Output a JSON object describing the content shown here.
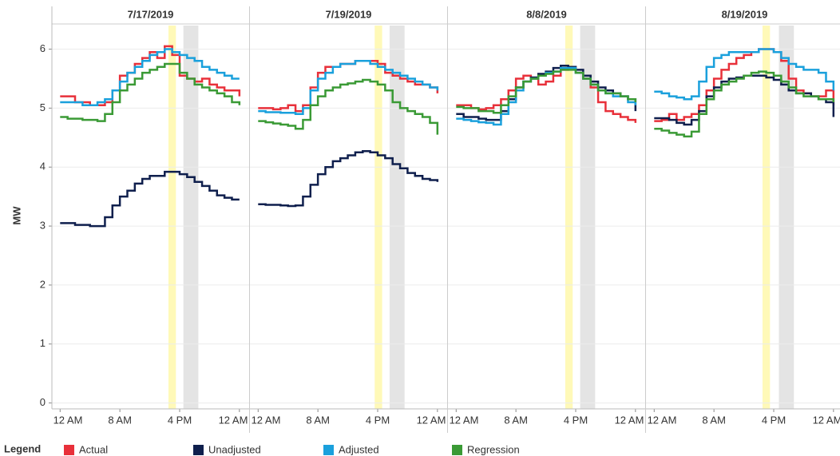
{
  "ylabel": "MW",
  "legend_title": "Legend",
  "chart_data": [
    {
      "type": "line",
      "step": true,
      "title": "7/17/2019",
      "x": [
        0,
        1,
        2,
        3,
        4,
        5,
        6,
        7,
        8,
        9,
        10,
        11,
        12,
        13,
        14,
        15,
        16,
        17,
        18,
        19,
        20,
        21,
        22,
        23,
        24
      ],
      "xlim": [
        -1.1,
        25.3
      ],
      "xticks": [
        {
          "value": 0,
          "label": "12 AM"
        },
        {
          "value": 8,
          "label": "8 AM"
        },
        {
          "value": 16,
          "label": "4 PM"
        },
        {
          "value": 24,
          "label": "12 AM"
        }
      ],
      "ylim": [
        -0.1,
        6.4
      ],
      "yticks": [
        0,
        1,
        2,
        3,
        4,
        5,
        6
      ],
      "grid": true,
      "highlights": [
        {
          "x": [
            14.5,
            15.5
          ],
          "color": "#fff9b8"
        },
        {
          "x": [
            16.5,
            18.5
          ],
          "color": "#e4e4e4"
        }
      ],
      "series": [
        {
          "name": "Actual",
          "color": "#e8303a",
          "values": [
            5.2,
            5.2,
            5.1,
            5.1,
            5.05,
            5.05,
            5.1,
            5.3,
            5.55,
            5.6,
            5.75,
            5.85,
            5.95,
            5.85,
            6.05,
            5.9,
            5.55,
            5.5,
            5.45,
            5.5,
            5.4,
            5.35,
            5.3,
            5.3,
            5.2
          ]
        },
        {
          "name": "Unadjusted",
          "color": "#0f1f4d",
          "values": [
            3.05,
            3.05,
            3.02,
            3.02,
            3.0,
            3.0,
            3.15,
            3.35,
            3.5,
            3.6,
            3.72,
            3.8,
            3.85,
            3.85,
            3.92,
            3.92,
            3.88,
            3.83,
            3.75,
            3.68,
            3.6,
            3.52,
            3.48,
            3.45,
            3.45
          ]
        },
        {
          "name": "Adjusted",
          "color": "#1aa0dc",
          "values": [
            5.1,
            5.1,
            5.1,
            5.05,
            5.05,
            5.1,
            5.15,
            5.3,
            5.45,
            5.6,
            5.7,
            5.8,
            5.9,
            5.95,
            6.0,
            5.95,
            5.9,
            5.85,
            5.8,
            5.7,
            5.65,
            5.6,
            5.55,
            5.5,
            5.5
          ]
        },
        {
          "name": "Regression",
          "color": "#3a9a35",
          "values": [
            4.85,
            4.82,
            4.82,
            4.8,
            4.8,
            4.78,
            4.9,
            5.1,
            5.3,
            5.4,
            5.5,
            5.6,
            5.65,
            5.7,
            5.75,
            5.75,
            5.6,
            5.5,
            5.4,
            5.35,
            5.3,
            5.25,
            5.2,
            5.1,
            5.05
          ]
        }
      ]
    },
    {
      "type": "line",
      "step": true,
      "title": "7/19/2019",
      "x": [
        0,
        1,
        2,
        3,
        4,
        5,
        6,
        7,
        8,
        9,
        10,
        11,
        12,
        13,
        14,
        15,
        16,
        17,
        18,
        19,
        20,
        21,
        22,
        23,
        24
      ],
      "xlim": [
        -1.1,
        25.3
      ],
      "xticks": [
        {
          "value": 0,
          "label": "12 AM"
        },
        {
          "value": 8,
          "label": "8 AM"
        },
        {
          "value": 16,
          "label": "4 PM"
        },
        {
          "value": 24,
          "label": "12 AM"
        }
      ],
      "ylim": [
        -0.1,
        6.4
      ],
      "yticks": [
        0,
        1,
        2,
        3,
        4,
        5,
        6
      ],
      "grid": true,
      "highlights": [
        {
          "x": [
            15.6,
            16.6
          ],
          "color": "#fff9b8"
        },
        {
          "x": [
            17.6,
            19.6
          ],
          "color": "#e4e4e4"
        }
      ],
      "series": [
        {
          "name": "Actual",
          "color": "#e8303a",
          "values": [
            5.0,
            5.0,
            4.98,
            5.0,
            5.05,
            4.95,
            5.05,
            5.35,
            5.6,
            5.7,
            5.7,
            5.75,
            5.75,
            5.8,
            5.8,
            5.8,
            5.75,
            5.6,
            5.55,
            5.5,
            5.45,
            5.4,
            5.4,
            5.35,
            5.25
          ]
        },
        {
          "name": "Unadjusted",
          "color": "#0f1f4d",
          "values": [
            3.37,
            3.36,
            3.36,
            3.35,
            3.34,
            3.35,
            3.5,
            3.7,
            3.88,
            4.0,
            4.1,
            4.15,
            4.2,
            4.25,
            4.27,
            4.25,
            4.2,
            4.15,
            4.05,
            3.98,
            3.9,
            3.85,
            3.8,
            3.78,
            3.75
          ]
        },
        {
          "name": "Adjusted",
          "color": "#1aa0dc",
          "values": [
            4.95,
            4.93,
            4.93,
            4.92,
            4.92,
            4.9,
            5.0,
            5.3,
            5.5,
            5.6,
            5.7,
            5.75,
            5.75,
            5.8,
            5.8,
            5.75,
            5.7,
            5.65,
            5.6,
            5.55,
            5.5,
            5.45,
            5.4,
            5.35,
            5.3
          ]
        },
        {
          "name": "Regression",
          "color": "#3a9a35",
          "values": [
            4.78,
            4.76,
            4.74,
            4.72,
            4.7,
            4.65,
            4.8,
            5.05,
            5.2,
            5.3,
            5.35,
            5.4,
            5.42,
            5.45,
            5.48,
            5.45,
            5.4,
            5.3,
            5.1,
            5.0,
            4.95,
            4.9,
            4.85,
            4.75,
            4.55
          ]
        }
      ]
    },
    {
      "type": "line",
      "step": true,
      "title": "8/8/2019",
      "x": [
        0,
        1,
        2,
        3,
        4,
        5,
        6,
        7,
        8,
        9,
        10,
        11,
        12,
        13,
        14,
        15,
        16,
        17,
        18,
        19,
        20,
        21,
        22,
        23,
        24
      ],
      "xlim": [
        -1.1,
        25.3
      ],
      "xticks": [
        {
          "value": 0,
          "label": "12 AM"
        },
        {
          "value": 8,
          "label": "8 AM"
        },
        {
          "value": 16,
          "label": "4 PM"
        },
        {
          "value": 24,
          "label": "12 AM"
        }
      ],
      "ylim": [
        -0.1,
        6.4
      ],
      "yticks": [
        0,
        1,
        2,
        3,
        4,
        5,
        6
      ],
      "grid": true,
      "highlights": [
        {
          "x": [
            14.6,
            15.6
          ],
          "color": "#fff9b8"
        },
        {
          "x": [
            16.6,
            18.6
          ],
          "color": "#e4e4e4"
        }
      ],
      "series": [
        {
          "name": "Actual",
          "color": "#e8303a",
          "values": [
            5.05,
            5.05,
            5.0,
            4.98,
            5.0,
            5.05,
            5.15,
            5.3,
            5.5,
            5.55,
            5.5,
            5.4,
            5.45,
            5.55,
            5.65,
            5.7,
            5.6,
            5.5,
            5.35,
            5.1,
            4.95,
            4.9,
            4.85,
            4.8,
            4.75
          ]
        },
        {
          "name": "Unadjusted",
          "color": "#0f1f4d",
          "values": [
            4.9,
            4.85,
            4.85,
            4.82,
            4.8,
            4.8,
            4.95,
            5.15,
            5.35,
            5.45,
            5.52,
            5.58,
            5.62,
            5.68,
            5.72,
            5.7,
            5.65,
            5.55,
            5.45,
            5.35,
            5.3,
            5.25,
            5.2,
            5.15,
            4.95
          ]
        },
        {
          "name": "Adjusted",
          "color": "#1aa0dc",
          "values": [
            4.82,
            4.8,
            4.78,
            4.76,
            4.75,
            4.72,
            4.9,
            5.1,
            5.3,
            5.45,
            5.5,
            5.55,
            5.6,
            5.62,
            5.68,
            5.68,
            5.6,
            5.5,
            5.4,
            5.3,
            5.25,
            5.2,
            5.2,
            5.1,
            5.05
          ]
        },
        {
          "name": "Regression",
          "color": "#3a9a35",
          "values": [
            5.02,
            5.0,
            5.0,
            4.95,
            4.95,
            4.92,
            5.05,
            5.2,
            5.35,
            5.45,
            5.5,
            5.55,
            5.58,
            5.62,
            5.65,
            5.65,
            5.6,
            5.5,
            5.4,
            5.3,
            5.25,
            5.25,
            5.2,
            5.15,
            5.1
          ]
        }
      ]
    },
    {
      "type": "line",
      "step": true,
      "title": "8/19/2019",
      "x": [
        0,
        1,
        2,
        3,
        4,
        5,
        6,
        7,
        8,
        9,
        10,
        11,
        12,
        13,
        14,
        15,
        16,
        17,
        18,
        19,
        20,
        21,
        22,
        23,
        24
      ],
      "xlim": [
        -1.1,
        25.3
      ],
      "xticks": [
        {
          "value": 0,
          "label": "12 AM"
        },
        {
          "value": 8,
          "label": "8 AM"
        },
        {
          "value": 16,
          "label": "4 PM"
        },
        {
          "value": 24,
          "label": "12 AM"
        }
      ],
      "ylim": [
        -0.1,
        6.4
      ],
      "yticks": [
        0,
        1,
        2,
        3,
        4,
        5,
        6
      ],
      "grid": true,
      "highlights": [
        {
          "x": [
            14.5,
            15.5
          ],
          "color": "#fff9b8"
        },
        {
          "x": [
            16.7,
            18.7
          ],
          "color": "#e4e4e4"
        }
      ],
      "series": [
        {
          "name": "Actual",
          "color": "#e8303a",
          "values": [
            4.78,
            4.8,
            4.9,
            4.8,
            4.85,
            4.9,
            5.05,
            5.3,
            5.5,
            5.65,
            5.75,
            5.85,
            5.9,
            5.95,
            6.0,
            6.0,
            5.95,
            5.8,
            5.5,
            5.3,
            5.25,
            5.2,
            5.2,
            5.3,
            5.05
          ]
        },
        {
          "name": "Unadjusted",
          "color": "#0f1f4d",
          "values": [
            4.83,
            4.83,
            4.8,
            4.75,
            4.72,
            4.8,
            4.95,
            5.2,
            5.35,
            5.45,
            5.5,
            5.52,
            5.55,
            5.55,
            5.55,
            5.52,
            5.48,
            5.4,
            5.3,
            5.25,
            5.25,
            5.2,
            5.15,
            5.1,
            4.85
          ]
        },
        {
          "name": "Adjusted",
          "color": "#1aa0dc",
          "values": [
            5.28,
            5.25,
            5.2,
            5.18,
            5.15,
            5.2,
            5.45,
            5.7,
            5.85,
            5.9,
            5.95,
            5.95,
            5.95,
            5.95,
            6.0,
            6.0,
            5.95,
            5.85,
            5.75,
            5.7,
            5.65,
            5.65,
            5.6,
            5.45,
            5.3
          ]
        },
        {
          "name": "Regression",
          "color": "#3a9a35",
          "values": [
            4.65,
            4.62,
            4.58,
            4.55,
            4.52,
            4.6,
            4.9,
            5.15,
            5.3,
            5.4,
            5.45,
            5.5,
            5.55,
            5.6,
            5.62,
            5.6,
            5.55,
            5.45,
            5.35,
            5.25,
            5.2,
            5.2,
            5.15,
            5.15,
            5.1
          ]
        }
      ]
    }
  ]
}
